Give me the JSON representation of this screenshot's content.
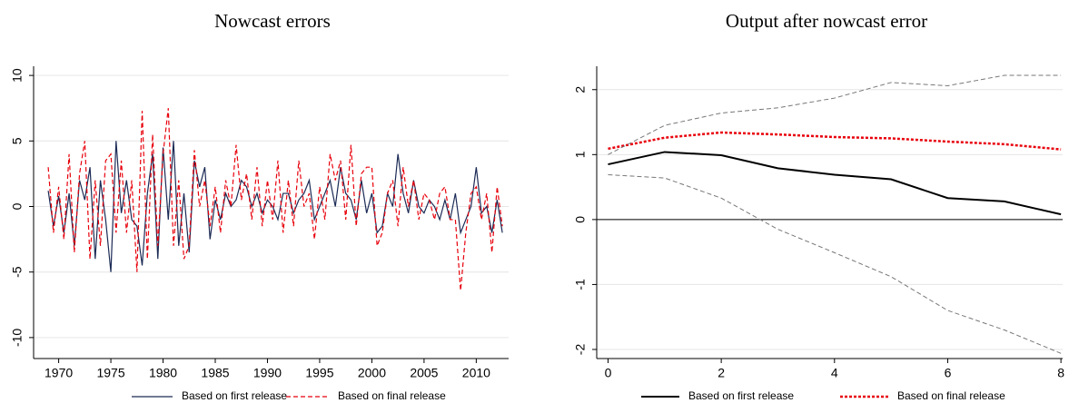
{
  "chart_data": [
    {
      "type": "line",
      "title": "Nowcast errors",
      "x": [
        1969,
        1969.5,
        1970,
        1970.5,
        1971,
        1971.5,
        1972,
        1972.5,
        1973,
        1973.5,
        1974,
        1974.5,
        1975,
        1975.5,
        1976,
        1976.5,
        1977,
        1977.5,
        1978,
        1978.5,
        1979,
        1979.5,
        1980,
        1980.5,
        1981,
        1981.5,
        1982,
        1982.5,
        1983,
        1983.5,
        1984,
        1984.5,
        1985,
        1985.5,
        1986,
        1986.5,
        1987,
        1987.5,
        1988,
        1988.5,
        1989,
        1989.5,
        1990,
        1990.5,
        1991,
        1991.5,
        1992,
        1992.5,
        1993,
        1993.5,
        1994,
        1994.5,
        1995,
        1995.5,
        1996,
        1996.5,
        1997,
        1997.5,
        1998,
        1998.5,
        1999,
        1999.5,
        2000,
        2000.5,
        2001,
        2001.5,
        2002,
        2002.5,
        2003,
        2003.5,
        2004,
        2004.5,
        2005,
        2005.5,
        2006,
        2006.5,
        2007,
        2007.5,
        2008,
        2008.5,
        2009,
        2009.5,
        2010,
        2010.5,
        2011,
        2011.5,
        2012,
        2012.5
      ],
      "series": [
        {
          "name": "Based on first release",
          "color": "#1b2a55",
          "dash": "solid",
          "values": [
            1.2,
            -1.5,
            0.8,
            -2,
            1,
            -3,
            2,
            0.5,
            3,
            -4,
            2,
            -1,
            -5,
            5,
            -0.5,
            2,
            -1,
            -1.5,
            -4.5,
            1,
            4,
            -4,
            4.5,
            -1,
            5,
            -3,
            1,
            -3.5,
            3.5,
            1.5,
            3,
            -2.5,
            0.5,
            -1,
            1,
            0,
            0.5,
            2,
            1.5,
            0,
            1,
            -0.5,
            0.5,
            0,
            -1,
            1,
            1,
            -0.5,
            0.5,
            1,
            2,
            -1,
            0,
            1,
            2,
            0,
            3,
            1,
            0.5,
            -1,
            2,
            -0.5,
            1,
            -2,
            -1.5,
            1,
            0,
            4,
            1,
            -0.5,
            2,
            0,
            -0.5,
            0.5,
            0,
            -1,
            0.5,
            -1,
            1,
            -2,
            -1,
            0,
            3,
            -0.5,
            0,
            -2,
            0.5,
            -2
          ]
        },
        {
          "name": "Based on final release",
          "color": "#e8000b",
          "dash": "dashed",
          "values": [
            3,
            -2,
            1.5,
            -2.5,
            4,
            -3.5,
            2.5,
            5,
            -4,
            2,
            -3,
            3.5,
            4,
            -2,
            3.5,
            -2,
            2,
            -5,
            7.3,
            -4,
            5.5,
            -3,
            4,
            7.5,
            -3,
            2,
            -4,
            -3,
            4.3,
            0,
            2,
            -1.5,
            1.5,
            -2,
            2,
            0,
            4.7,
            0.5,
            2.5,
            -1,
            3,
            -1.5,
            2,
            -1,
            3.5,
            -2,
            2,
            -1.5,
            3.5,
            0,
            1,
            -2.5,
            1.5,
            -1,
            4,
            2,
            3.5,
            -1,
            4.7,
            -1.5,
            2.5,
            3,
            3,
            -3,
            -2,
            1,
            2,
            -1.5,
            3,
            0,
            2,
            -1,
            1,
            0.5,
            -1,
            1,
            1.5,
            -1,
            -1,
            -6.4,
            -2,
            1,
            1.5,
            -1,
            1,
            -3.5,
            1.5,
            -1.5
          ]
        }
      ],
      "xlim": [
        1967.6,
        2013.1
      ],
      "xticks": [
        1970,
        1975,
        1980,
        1985,
        1990,
        1995,
        2000,
        2005,
        2010
      ],
      "ylim": [
        -11.6,
        10.7
      ],
      "yticks": [
        -10,
        -5,
        0,
        5,
        10
      ],
      "grid": true,
      "legend": "bottom"
    },
    {
      "type": "line",
      "title": "Output after nowcast error",
      "x": [
        0,
        1,
        2,
        3,
        4,
        5,
        6,
        7,
        8
      ],
      "series": [
        {
          "name": "Based on first release",
          "color": "#000000",
          "dash": "solid",
          "values": [
            0.85,
            1.04,
            0.99,
            0.79,
            0.69,
            0.62,
            0.33,
            0.28,
            0.08
          ]
        },
        {
          "name": "Based on final release",
          "color": "#e8000b",
          "dash": "dotted",
          "values": [
            1.09,
            1.26,
            1.34,
            1.31,
            1.27,
            1.25,
            1.2,
            1.16,
            1.08
          ]
        },
        {
          "color": "#777777",
          "dash": "dashed",
          "values": [
            1.0,
            1.45,
            1.64,
            1.72,
            1.87,
            2.11,
            2.06,
            2.22,
            2.22
          ]
        },
        {
          "color": "#777777",
          "dash": "dashed",
          "values": [
            0.69,
            0.64,
            0.33,
            -0.15,
            -0.51,
            -0.88,
            -1.4,
            -1.7,
            -2.06
          ]
        }
      ],
      "xlim": [
        -0.2,
        8.03
      ],
      "xticks": [
        0,
        2,
        4,
        6,
        8
      ],
      "ylim": [
        -2.14,
        2.36
      ],
      "yticks": [
        -2,
        -1,
        0,
        1,
        2
      ],
      "grid": true,
      "zero_line": true,
      "legend": "bottom"
    }
  ]
}
